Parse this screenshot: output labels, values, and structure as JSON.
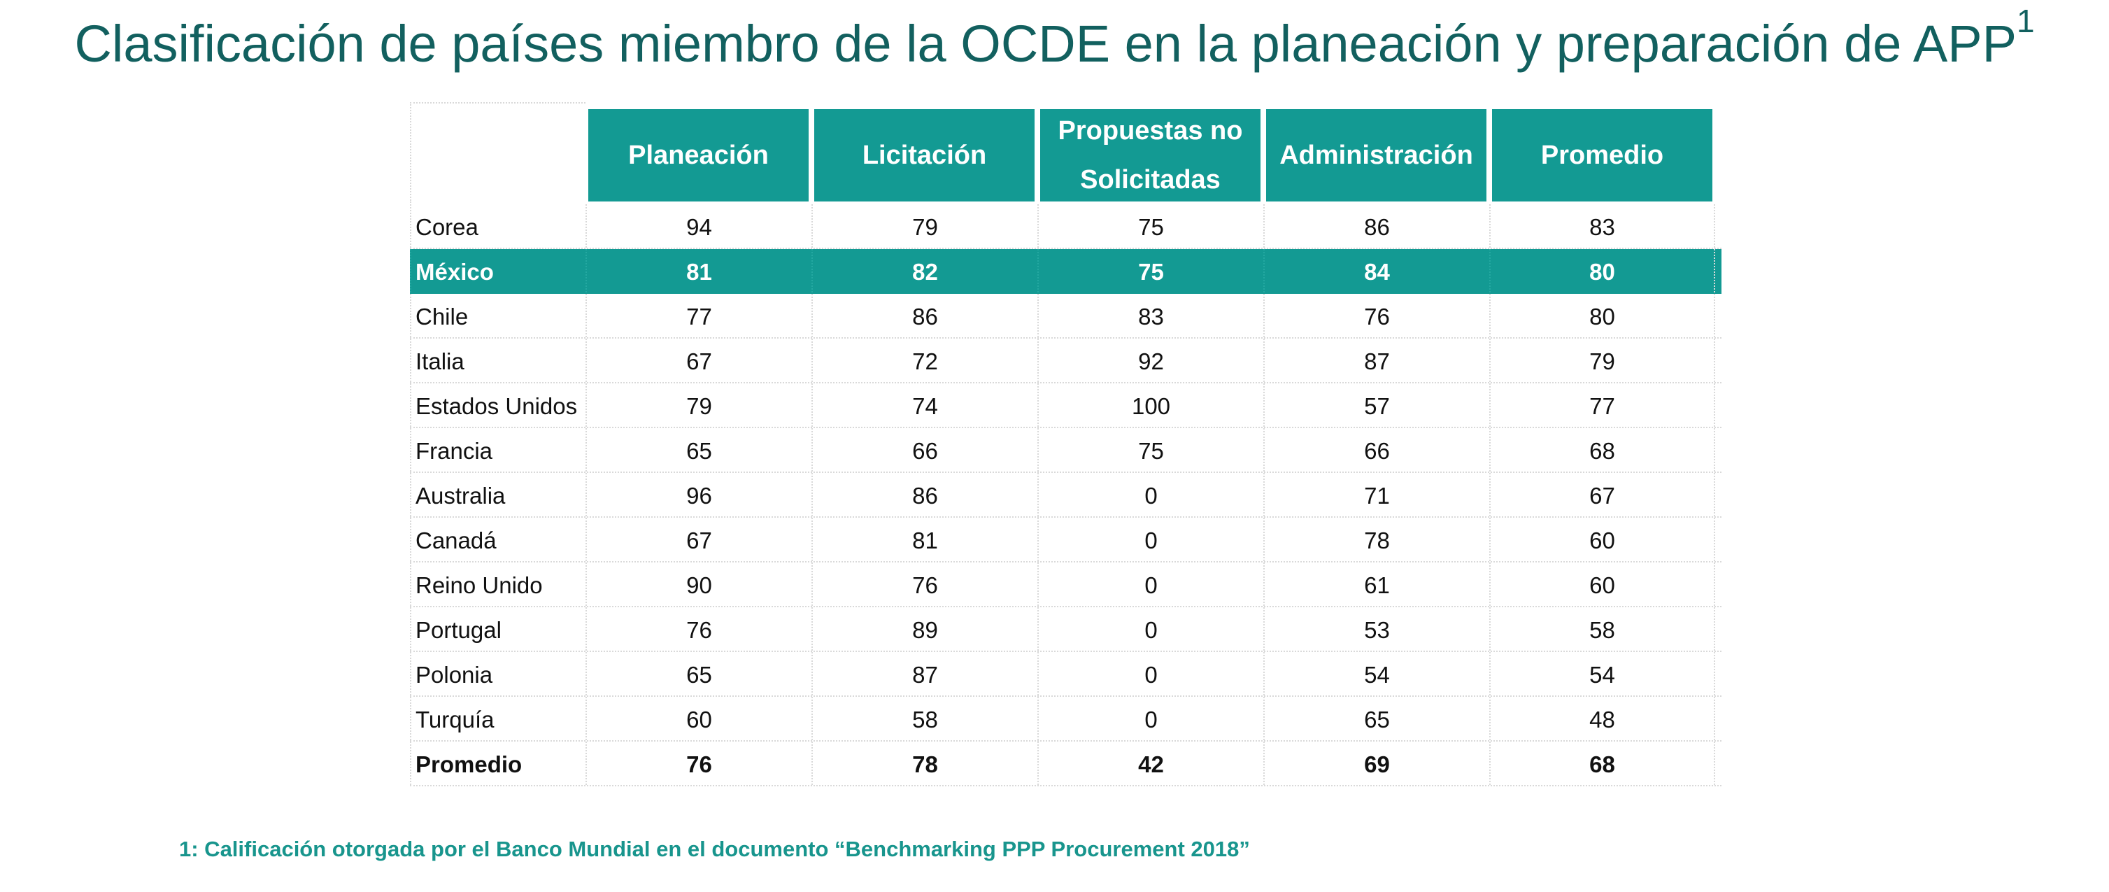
{
  "title": {
    "text": "Clasificación de países miembro de la OCDE en la planeación y preparación de APP",
    "superscript": "1"
  },
  "colors": {
    "accent": "#139a93",
    "title": "#12605f",
    "footnote": "#18958d"
  },
  "chart_data": {
    "type": "table",
    "columns": [
      "Planeación",
      "Licitación",
      "Propuestas no Solicitadas",
      "Administración",
      "Promedio"
    ],
    "rows": [
      {
        "label": "Corea",
        "values": [
          "94",
          "79",
          "75",
          "86",
          "83"
        ],
        "style": "normal"
      },
      {
        "label": "México",
        "values": [
          "81",
          "82",
          "75",
          "84",
          "80"
        ],
        "style": "highlight"
      },
      {
        "label": "Chile",
        "values": [
          "77",
          "86",
          "83",
          "76",
          "80"
        ],
        "style": "normal"
      },
      {
        "label": "Italia",
        "values": [
          "67",
          "72",
          "92",
          "87",
          "79"
        ],
        "style": "normal"
      },
      {
        "label": "Estados Unidos",
        "values": [
          "79",
          "74",
          "100",
          "57",
          "77"
        ],
        "style": "normal"
      },
      {
        "label": "Francia",
        "values": [
          "65",
          "66",
          "75",
          "66",
          "68"
        ],
        "style": "normal"
      },
      {
        "label": "Australia",
        "values": [
          "96",
          "86",
          "0",
          "71",
          "67"
        ],
        "style": "normal"
      },
      {
        "label": "Canadá",
        "values": [
          "67",
          "81",
          "0",
          "78",
          "60"
        ],
        "style": "normal"
      },
      {
        "label": "Reino Unido",
        "values": [
          "90",
          "76",
          "0",
          "61",
          "60"
        ],
        "style": "normal"
      },
      {
        "label": "Portugal",
        "values": [
          "76",
          "89",
          "0",
          "53",
          "58"
        ],
        "style": "normal"
      },
      {
        "label": "Polonia",
        "values": [
          "65",
          "87",
          "0",
          "54",
          "54"
        ],
        "style": "normal"
      },
      {
        "label": "Turquía",
        "values": [
          "60",
          "58",
          "0",
          "65",
          "48"
        ],
        "style": "normal"
      },
      {
        "label": "Promedio",
        "values": [
          "76",
          "78",
          "42",
          "69",
          "68"
        ],
        "style": "total"
      }
    ]
  },
  "footnote": "1: Calificación otorgada por el Banco Mundial en el documento “Benchmarking PPP Procurement 2018”"
}
